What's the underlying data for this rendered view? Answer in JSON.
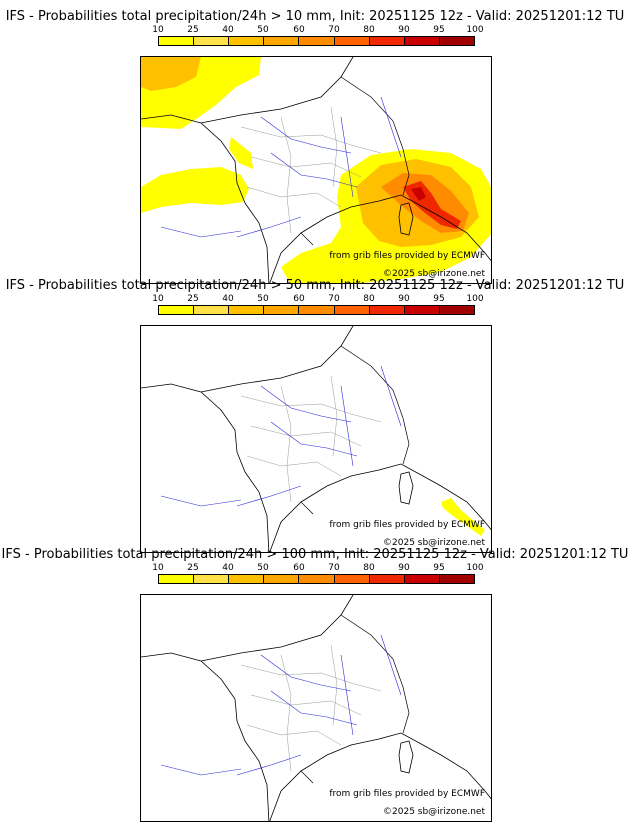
{
  "colorbar": {
    "labels": [
      "10",
      "25",
      "40",
      "50",
      "60",
      "70",
      "80",
      "90",
      "95",
      "100"
    ],
    "colors": [
      "#ffff00",
      "#ffe24a",
      "#ffc000",
      "#ffa600",
      "#ff8c00",
      "#ff6400",
      "#f02800",
      "#c80000",
      "#a00000",
      "#6e0000"
    ]
  },
  "credits": {
    "grib": "from grib files provided by ECMWF",
    "copyright": "©2025 sb@irizone.net"
  },
  "panels": [
    {
      "title": "IFS - Probabilities total precipitation/24h > 10 mm, Init: 20251125 12z - Valid: 20251201:12 TU",
      "threshold": "> 10 mm"
    },
    {
      "title": "IFS - Probabilities total precipitation/24h > 50 mm, Init: 20251125 12z - Valid: 20251201:12 TU",
      "threshold": "> 50 mm"
    },
    {
      "title": "IFS - Probabilities total precipitation/24h > 100 mm, Init: 20251125 12z - Valid: 20251201:12 TU",
      "threshold": "> 100 mm"
    }
  ]
}
